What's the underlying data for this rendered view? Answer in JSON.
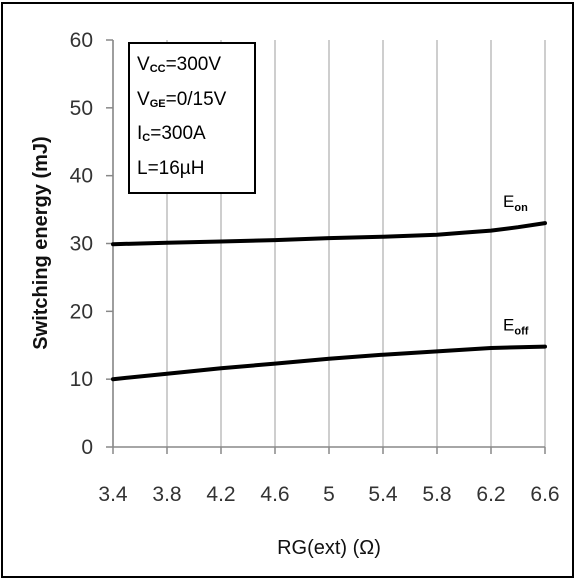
{
  "chart_data": {
    "type": "line",
    "xlabel": "RG(ext) (Ω)",
    "ylabel": "Switching energy (mJ)",
    "x_ticks": [
      "3.4",
      "3.8",
      "4.2",
      "4.6",
      "5",
      "5.4",
      "5.8",
      "6.2",
      "6.6"
    ],
    "y_ticks": [
      "0",
      "10",
      "20",
      "30",
      "40",
      "50",
      "60"
    ],
    "xlim": [
      3.4,
      6.6
    ],
    "ylim": [
      0,
      60
    ],
    "grid": "vertical",
    "conditions": [
      {
        "main": "V",
        "sub": "CC",
        "rest": "=300V"
      },
      {
        "main": "V",
        "sub": "GE",
        "rest": "=0/15V"
      },
      {
        "main": "I",
        "sub": "C",
        "rest": "=300A"
      },
      {
        "main": "L=16µH",
        "sub": "",
        "rest": ""
      }
    ],
    "series": [
      {
        "name": "Eon",
        "label_main": "E",
        "label_sub": "on",
        "x": [
          3.4,
          3.8,
          4.2,
          4.6,
          5.0,
          5.4,
          5.8,
          6.0,
          6.2,
          6.4,
          6.6
        ],
        "y": [
          29.9,
          30.1,
          30.3,
          30.5,
          30.8,
          31.0,
          31.3,
          31.6,
          31.9,
          32.4,
          33.0
        ]
      },
      {
        "name": "Eoff",
        "label_main": "E",
        "label_sub": "off",
        "x": [
          3.4,
          3.8,
          4.2,
          4.6,
          5.0,
          5.4,
          5.8,
          6.2,
          6.6
        ],
        "y": [
          10.0,
          10.8,
          11.6,
          12.3,
          13.0,
          13.6,
          14.1,
          14.6,
          14.8
        ]
      }
    ]
  }
}
